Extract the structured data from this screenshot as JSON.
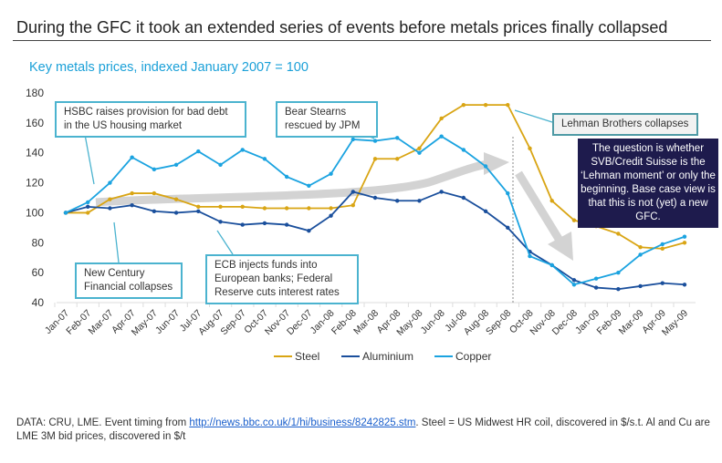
{
  "title": "During the GFC it took an extended series of events before metals prices finally collapsed",
  "chart_data": {
    "type": "line",
    "title": "Key metals prices, indexed January 2007 = 100",
    "xlabel": "",
    "ylabel": "",
    "ylim": [
      40,
      180
    ],
    "yticks": [
      40,
      60,
      80,
      100,
      120,
      140,
      160,
      180
    ],
    "categories": [
      "Jan-07",
      "Feb-07",
      "Mar-07",
      "Apr-07",
      "May-07",
      "Jun-07",
      "Jul-07",
      "Aug-07",
      "Sep-07",
      "Oct-07",
      "Nov-07",
      "Dec-07",
      "Jan-08",
      "Feb-08",
      "Mar-08",
      "Apr-08",
      "May-08",
      "Jun-08",
      "Jul-08",
      "Aug-08",
      "Sep-08",
      "Oct-08",
      "Nov-08",
      "Dec-08",
      "Jan-09",
      "Feb-09",
      "Mar-09",
      "Apr-09",
      "May-09"
    ],
    "series": [
      {
        "name": "Steel",
        "color": "#d9a514",
        "values": [
          100,
          100,
          109,
          113,
          113,
          109,
          104,
          104,
          104,
          103,
          103,
          103,
          103,
          105,
          136,
          136,
          143,
          163,
          172,
          172,
          172,
          143,
          108,
          95,
          91,
          86,
          77,
          76,
          80
        ]
      },
      {
        "name": "Aluminium",
        "color": "#1a4f9c",
        "values": [
          100,
          104,
          103,
          105,
          101,
          100,
          101,
          94,
          92,
          93,
          92,
          88,
          98,
          114,
          110,
          108,
          108,
          114,
          110,
          101,
          90,
          74,
          65,
          55,
          50,
          49,
          51,
          53,
          52
        ]
      },
      {
        "name": "Copper",
        "color": "#1ba3e0",
        "values": [
          100,
          107,
          120,
          137,
          129,
          132,
          141,
          132,
          142,
          136,
          124,
          118,
          126,
          149,
          148,
          150,
          140,
          151,
          142,
          131,
          113,
          71,
          65,
          52,
          56,
          60,
          72,
          79,
          84
        ]
      }
    ],
    "legend": "bottom",
    "grid": false
  },
  "annotations": {
    "hsbc": "HSBC raises provision for bad debt in the US housing market",
    "bear": "Bear Stearns rescued by JPM",
    "newcentury": "New Century Financial collapses",
    "ecb": "ECB injects funds into European banks; Federal Reserve cuts interest rates",
    "lehman": "Lehman Brothers collapses",
    "question": "The question is whether SVB/Credit Suisse is the ‘Lehman moment’ or only the beginning. Base case view is that this is not (yet) a new GFC."
  },
  "footer": {
    "pre": "DATA: CRU, LME. Event timing from ",
    "link": "http://news.bbc.co.uk/1/hi/business/8242825.stm",
    "post": ". Steel = US Midwest HR coil, discovered in $/s.t. Al and Cu are LME 3M bid prices, discovered in $/t"
  }
}
